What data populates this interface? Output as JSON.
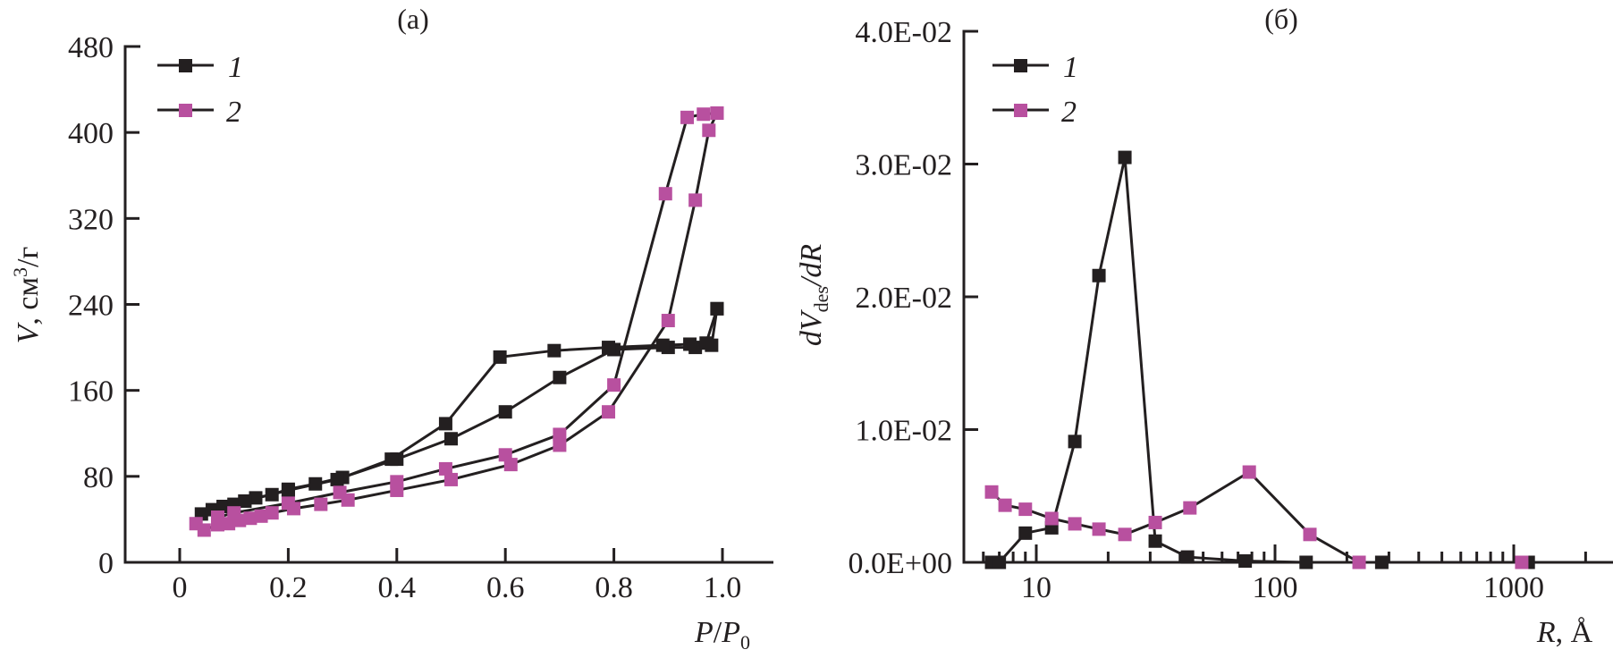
{
  "colors": {
    "series1": "#231f20",
    "series2": "#b8509f",
    "axis": "#231f20",
    "line": "#231f20"
  },
  "chart_data": [
    {
      "panel": "a",
      "type": "line",
      "title": "(a)",
      "xlabel": "P/P0",
      "xlabel_parts": {
        "main": "P",
        "sep": "/",
        "main2": "P",
        "sub": "0"
      },
      "ylabel": "V, см³/г",
      "ylabel_parts": {
        "var": "V",
        "rest": ", см",
        "sup": "3",
        "unit": "/г"
      },
      "xlim": [
        -0.1,
        1.1
      ],
      "ylim": [
        0,
        480
      ],
      "xticks": [
        0,
        0.2,
        0.4,
        0.6,
        0.8,
        1.0
      ],
      "xtick_labels": [
        "0",
        "0.2",
        "0.4",
        "0.6",
        "0.8",
        "1.0"
      ],
      "yticks": [
        0,
        80,
        160,
        240,
        320,
        400,
        480
      ],
      "ytick_labels": [
        "0",
        "80",
        "160",
        "240",
        "320",
        "400",
        "480"
      ],
      "grid": false,
      "legend": {
        "position": "top-left",
        "entries": [
          "1",
          "2"
        ]
      },
      "series": [
        {
          "name": "1",
          "branches": [
            {
              "branch": "adsorption",
              "x": [
                0.04,
                0.06,
                0.08,
                0.1,
                0.12,
                0.14,
                0.17,
                0.2,
                0.25,
                0.3,
                0.4,
                0.5,
                0.6,
                0.7,
                0.8,
                0.9,
                0.95,
                0.98,
                0.99
              ],
              "y": [
                45,
                49,
                52,
                54,
                57,
                60,
                63,
                68,
                73,
                79,
                96,
                115,
                140,
                172,
                198,
                200,
                200,
                202,
                236
              ]
            },
            {
              "branch": "desorption",
              "x": [
                0.99,
                0.97,
                0.94,
                0.89,
                0.79,
                0.69,
                0.59,
                0.49,
                0.39,
                0.29,
                0.2,
                0.12
              ],
              "y": [
                236,
                204,
                203,
                202,
                200,
                197,
                191,
                129,
                96,
                77,
                67,
                57
              ]
            }
          ]
        },
        {
          "name": "2",
          "branches": [
            {
              "branch": "adsorption",
              "x": [
                0.03,
                0.045,
                0.07,
                0.09,
                0.11,
                0.13,
                0.15,
                0.17,
                0.21,
                0.26,
                0.31,
                0.4,
                0.5,
                0.61,
                0.7,
                0.79,
                0.9,
                0.95,
                0.975,
                0.99
              ],
              "y": [
                36,
                30,
                35,
                36,
                39,
                41,
                43,
                46,
                50,
                54,
                58,
                67,
                77,
                91,
                109,
                140,
                225,
                337,
                402,
                418
              ]
            },
            {
              "branch": "desorption",
              "x": [
                0.99,
                0.965,
                0.935,
                0.895,
                0.8,
                0.7,
                0.6,
                0.49,
                0.4,
                0.295,
                0.2,
                0.1,
                0.07
              ],
              "y": [
                418,
                417,
                414,
                343,
                165,
                119,
                100,
                87,
                75,
                65,
                55,
                46,
                42
              ]
            }
          ]
        }
      ]
    },
    {
      "panel": "b",
      "type": "line",
      "title": "(б)",
      "xlabel": "R, Å",
      "xlabel_parts": {
        "var": "R",
        "rest": ", Å"
      },
      "ylabel": "dVdes/dR",
      "ylabel_parts": {
        "a": "dV",
        "sub": "des",
        "b": "/dR"
      },
      "xscale": "log",
      "xlim": [
        5.5,
        2000
      ],
      "ylim": [
        0,
        0.04
      ],
      "xticks": [
        10,
        100,
        1000
      ],
      "xtick_labels": [
        "10",
        "100",
        "1000"
      ],
      "yticks": [
        0,
        0.01,
        0.02,
        0.03,
        0.04
      ],
      "ytick_labels": [
        "0.0E+00",
        "1.0E-02",
        "2.0E-02",
        "3.0E-02",
        "4.0E-02"
      ],
      "grid": false,
      "legend": {
        "position": "top-left",
        "entries": [
          "1",
          "2"
        ]
      },
      "series": [
        {
          "name": "1",
          "x": [
            6.5,
            7.0,
            9.0,
            11.6,
            14.5,
            18.3,
            23.5,
            31.5,
            43,
            75,
            135,
            280,
            1150
          ],
          "y": [
            0.0,
            0.0,
            0.0022,
            0.0026,
            0.0091,
            0.0216,
            0.0305,
            0.0016,
            0.0004,
            0.0001,
            0.0,
            0.0,
            0.0
          ]
        },
        {
          "name": "2",
          "x": [
            6.5,
            7.4,
            9.0,
            11.6,
            14.5,
            18.3,
            23.5,
            31.5,
            44,
            78,
            140,
            225,
            1080
          ],
          "y": [
            0.0053,
            0.0043,
            0.004,
            0.0033,
            0.0029,
            0.0025,
            0.0021,
            0.003,
            0.0041,
            0.0068,
            0.0021,
            0.0,
            0.0
          ]
        }
      ]
    }
  ]
}
